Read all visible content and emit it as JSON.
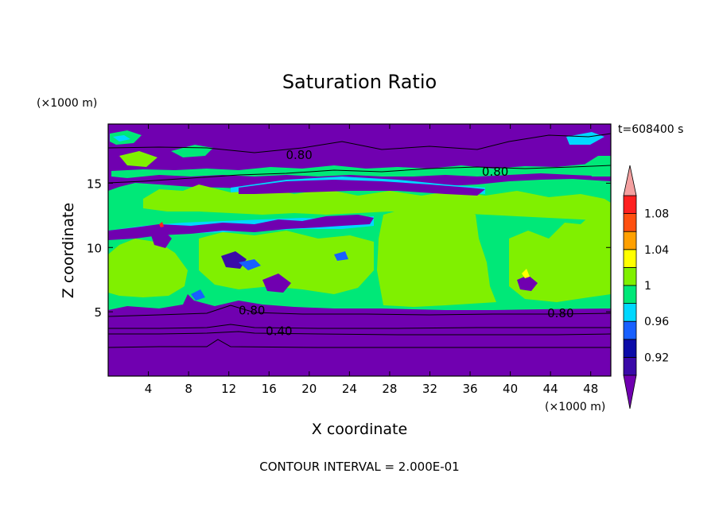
{
  "chart_data": {
    "type": "heatmap",
    "title": "Saturation Ratio",
    "xlabel": "X coordinate",
    "ylabel": "Z coordinate",
    "x_unit": "(×1000 m)",
    "y_unit": "(×1000 m)",
    "time_label": "t=608400 s",
    "footer": "CONTOUR INTERVAL = 2.000E-01",
    "xlim": [
      0,
      50
    ],
    "ylim": [
      0,
      19.6
    ],
    "xticks": [
      4,
      8,
      12,
      16,
      20,
      24,
      28,
      32,
      36,
      40,
      44,
      48
    ],
    "yticks": [
      5,
      10,
      15
    ],
    "colorbar": {
      "labels": [
        "0.92",
        "0.96",
        "1",
        "1.04",
        "1.08"
      ],
      "label_values": [
        0.92,
        0.96,
        1.0,
        1.04,
        1.08
      ],
      "levels": [
        0.9,
        0.92,
        0.94,
        0.96,
        0.98,
        1.0,
        1.02,
        1.04,
        1.06,
        1.08,
        1.1
      ],
      "colors": [
        "#3a0aa8",
        "#0c0ca8",
        "#1860ff",
        "#00d8ff",
        "#00e878",
        "#80f000",
        "#ffff00",
        "#ffa000",
        "#ff5010",
        "#ff2020"
      ],
      "under_color": "#7000b0",
      "over_color": "#f4a0a0"
    },
    "contour_labels": [
      {
        "text": "0.80",
        "x": 19.0,
        "y": 17.2
      },
      {
        "text": "0.80",
        "x": 38.5,
        "y": 15.9
      },
      {
        "text": "0.80",
        "x": 14.3,
        "y": 5.1
      },
      {
        "text": "0.80",
        "x": 45.0,
        "y": 4.9
      },
      {
        "text": "0.40",
        "x": 17.0,
        "y": 3.5
      }
    ],
    "regions": [
      {
        "level": "below_0.90",
        "z_range": [
          0,
          5.0
        ],
        "note": "lower layer"
      },
      {
        "level": "0.98-1.00",
        "z_range": [
          5.0,
          14.5
        ]
      },
      {
        "level": "1.00-1.02",
        "z_range": [
          5.2,
          14.0
        ],
        "note": "patches, large area x 27-38"
      },
      {
        "level": "below_0.90",
        "z_range": [
          16.5,
          19.6
        ],
        "note": "upper layer"
      }
    ]
  }
}
